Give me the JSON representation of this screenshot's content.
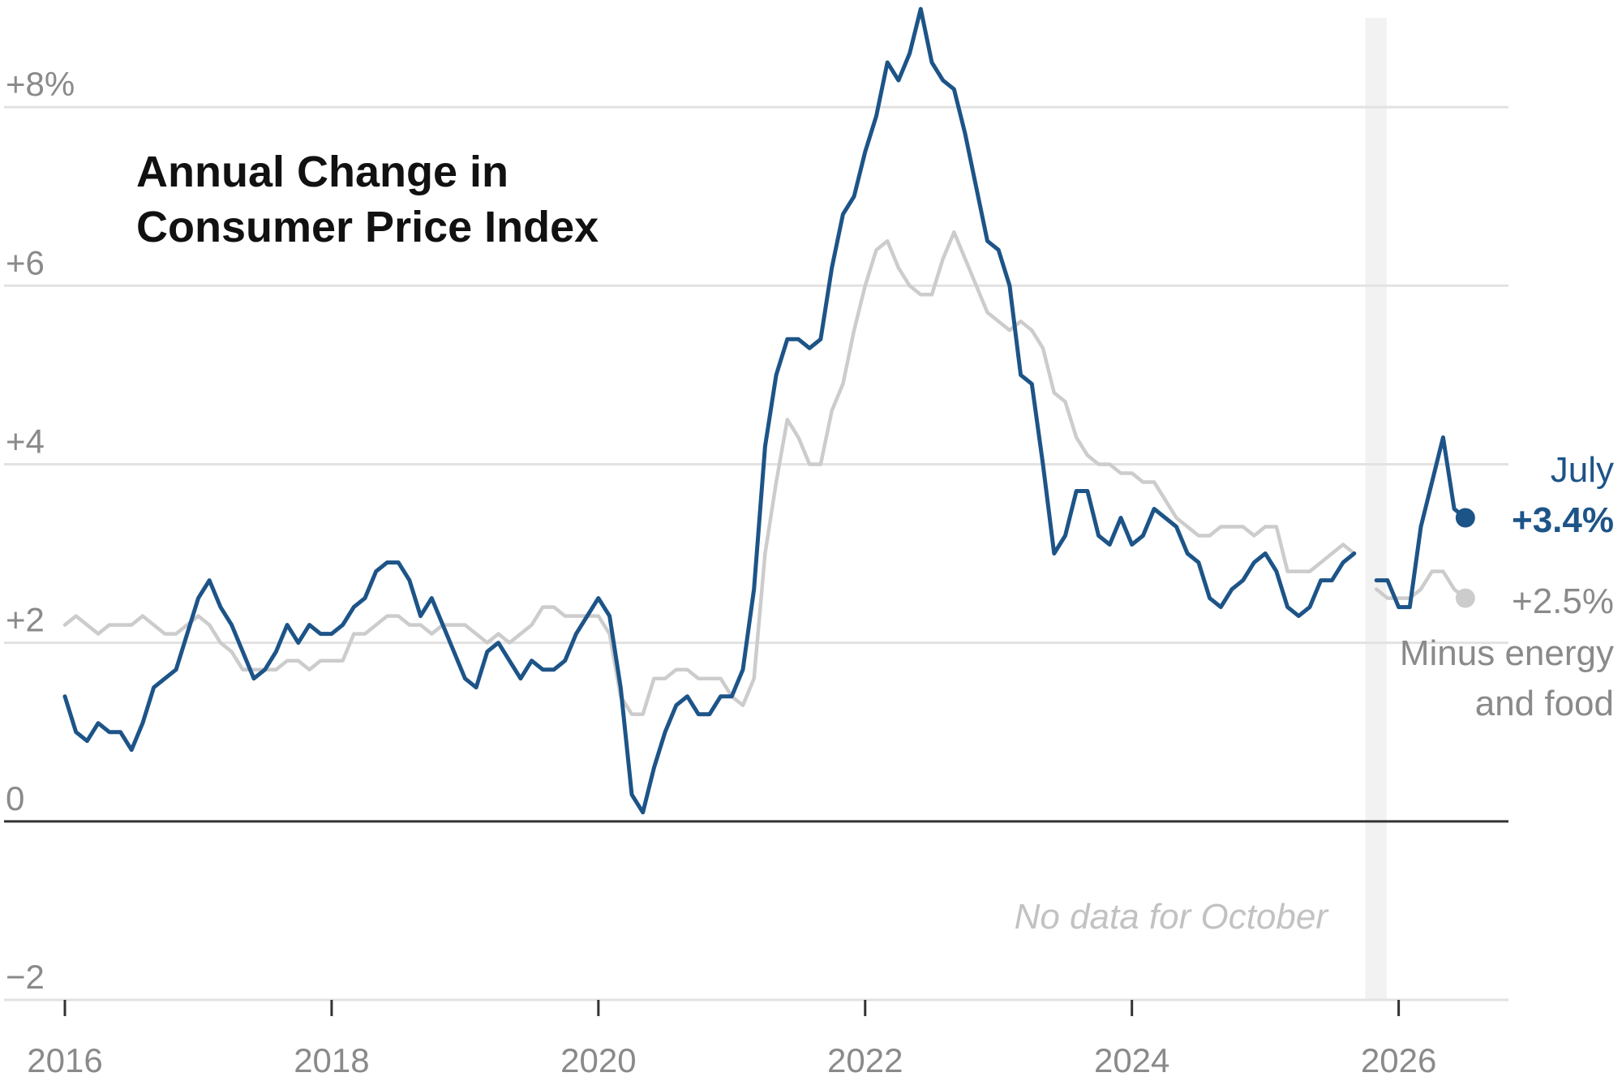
{
  "chart_data": {
    "type": "line",
    "title_lines": [
      "Annual Change in",
      "Consumer Price Index"
    ],
    "ylim": [
      -2.0,
      9.0
    ],
    "y_ticks": [
      {
        "value": 8,
        "label": "+8%"
      },
      {
        "value": 6,
        "label": "+6"
      },
      {
        "value": 4,
        "label": "+4"
      },
      {
        "value": 2,
        "label": "+2"
      },
      {
        "value": 0,
        "label": "0"
      },
      {
        "value": -2,
        "label": "−2"
      }
    ],
    "x_ticks": [
      "2016",
      "2018",
      "2020",
      "2022",
      "2024",
      "2026"
    ],
    "x_tick_years": [
      2016,
      2018,
      2020,
      2022,
      2024,
      2026
    ],
    "xlim": [
      2016.0,
      2026.58
    ],
    "gap_band": {
      "from": 2025.75,
      "to": 2025.91
    },
    "annotation": "No data for October",
    "grid": true,
    "series": [
      {
        "name": "July",
        "end_value_label": "+3.4%",
        "color": "#1d5488",
        "start": "2016-01",
        "values": [
          1.4,
          1.0,
          0.9,
          1.1,
          1.0,
          1.0,
          0.8,
          1.1,
          1.5,
          1.6,
          1.7,
          2.1,
          2.5,
          2.7,
          2.4,
          2.2,
          1.9,
          1.6,
          1.7,
          1.9,
          2.2,
          2.0,
          2.2,
          2.1,
          2.1,
          2.2,
          2.4,
          2.5,
          2.8,
          2.9,
          2.9,
          2.7,
          2.3,
          2.5,
          2.2,
          1.9,
          1.6,
          1.5,
          1.9,
          2.0,
          1.8,
          1.6,
          1.8,
          1.7,
          1.7,
          1.8,
          2.1,
          2.3,
          2.5,
          2.3,
          1.5,
          0.3,
          0.1,
          0.6,
          1.0,
          1.3,
          1.4,
          1.2,
          1.2,
          1.4,
          1.4,
          1.7,
          2.6,
          4.2,
          5.0,
          5.4,
          5.4,
          5.3,
          5.4,
          6.2,
          6.8,
          7.0,
          7.5,
          7.9,
          8.5,
          8.3,
          8.6,
          9.1,
          8.5,
          8.3,
          8.2,
          7.7,
          7.1,
          6.5,
          6.4,
          6.0,
          5.0,
          4.9,
          4.0,
          3.0,
          3.2,
          3.7,
          3.7,
          3.2,
          3.1,
          3.4,
          3.1,
          3.2,
          3.5,
          3.4,
          3.3,
          3.0,
          2.9,
          2.5,
          2.4,
          2.6,
          2.7,
          2.9,
          3.0,
          2.8,
          2.4,
          2.3,
          2.4,
          2.7,
          2.7,
          2.9,
          3.0,
          null,
          2.7,
          2.7,
          2.4,
          2.4,
          3.3,
          3.8,
          4.3,
          3.5,
          3.4
        ]
      },
      {
        "name": "Minus energy and food",
        "name_lines": [
          "Minus energy",
          "and food"
        ],
        "end_value_label": "+2.5%",
        "color": "#cccccc",
        "start": "2016-01",
        "values": [
          2.2,
          2.3,
          2.2,
          2.1,
          2.2,
          2.2,
          2.2,
          2.3,
          2.2,
          2.1,
          2.1,
          2.2,
          2.3,
          2.2,
          2.0,
          1.9,
          1.7,
          1.7,
          1.7,
          1.7,
          1.8,
          1.8,
          1.7,
          1.8,
          1.8,
          1.8,
          2.1,
          2.1,
          2.2,
          2.3,
          2.3,
          2.2,
          2.2,
          2.1,
          2.2,
          2.2,
          2.2,
          2.1,
          2.0,
          2.1,
          2.0,
          2.1,
          2.2,
          2.4,
          2.4,
          2.3,
          2.3,
          2.3,
          2.3,
          2.1,
          1.4,
          1.2,
          1.2,
          1.6,
          1.6,
          1.7,
          1.7,
          1.6,
          1.6,
          1.6,
          1.4,
          1.3,
          1.6,
          3.0,
          3.8,
          4.5,
          4.3,
          4.0,
          4.0,
          4.6,
          4.9,
          5.5,
          6.0,
          6.4,
          6.5,
          6.2,
          6.0,
          5.9,
          5.9,
          6.3,
          6.6,
          6.3,
          6.0,
          5.7,
          5.6,
          5.5,
          5.6,
          5.5,
          5.3,
          4.8,
          4.7,
          4.3,
          4.1,
          4.0,
          4.0,
          3.9,
          3.9,
          3.8,
          3.8,
          3.6,
          3.4,
          3.3,
          3.2,
          3.2,
          3.3,
          3.3,
          3.3,
          3.2,
          3.3,
          3.3,
          2.8,
          2.8,
          2.8,
          2.9,
          3.0,
          3.1,
          3.0,
          null,
          2.6,
          2.5,
          2.5,
          2.5,
          2.6,
          2.8,
          2.8,
          2.6,
          2.5
        ]
      }
    ]
  }
}
